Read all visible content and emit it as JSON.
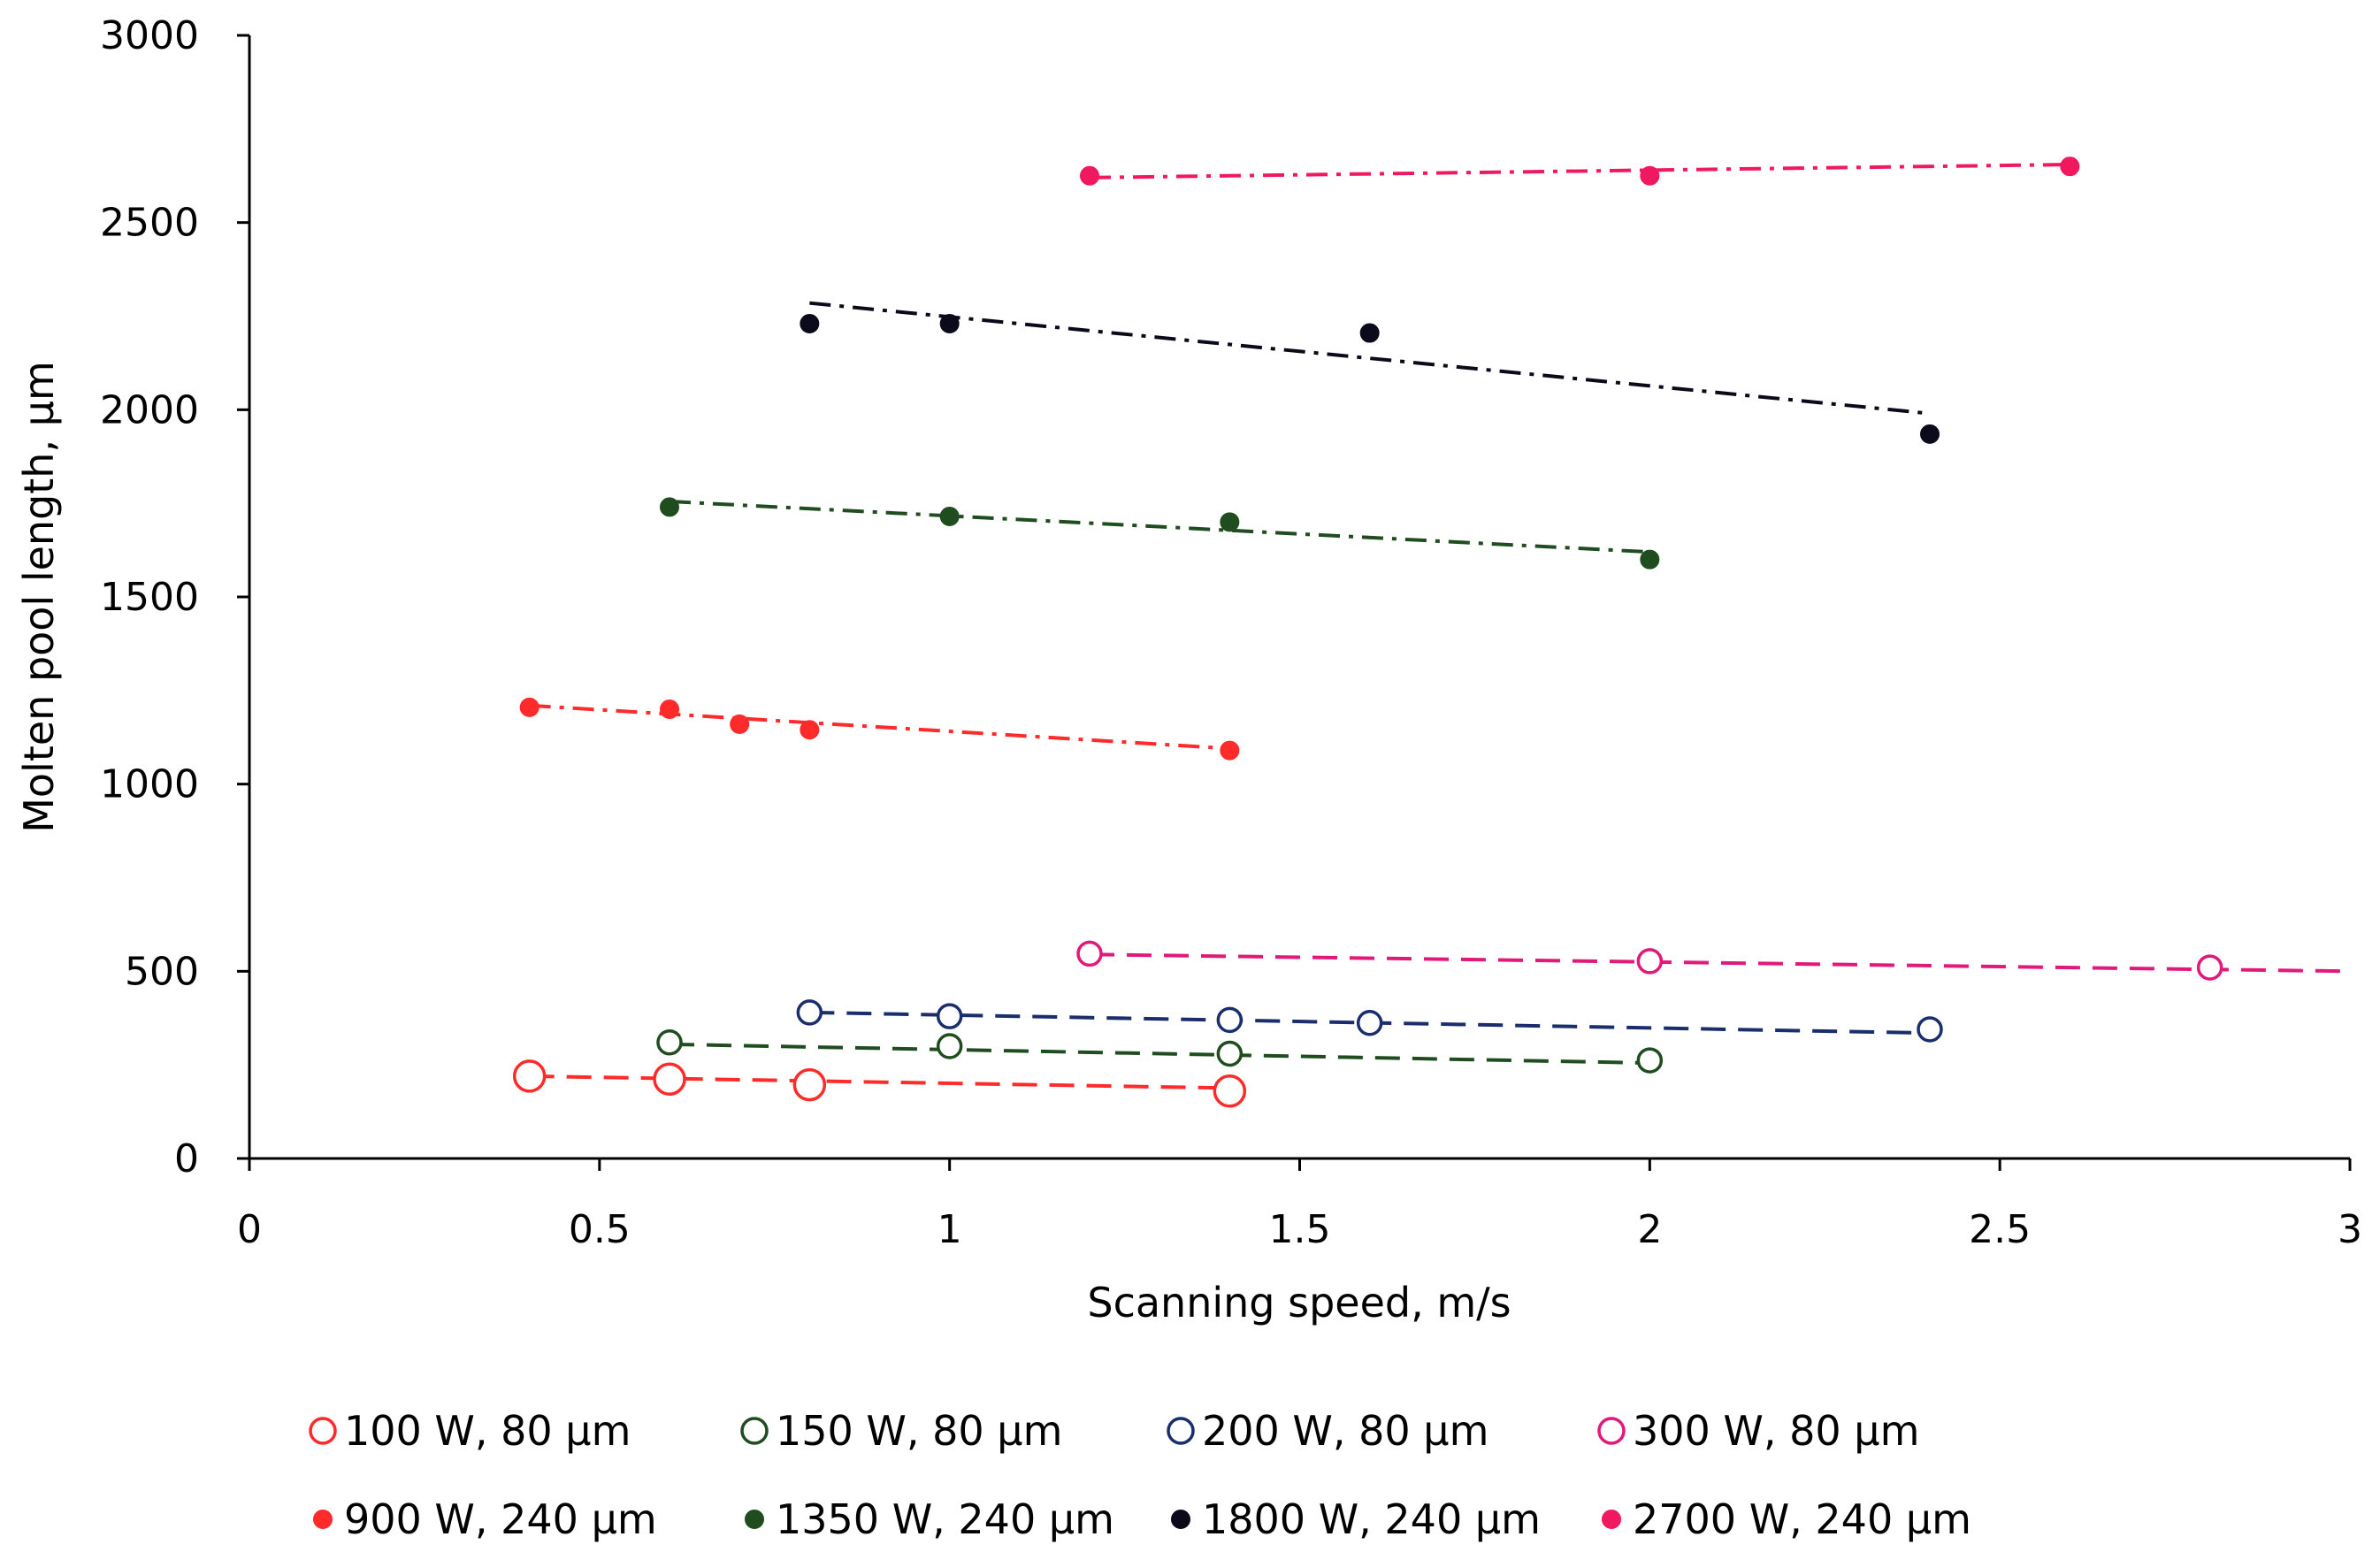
{
  "chart_data": {
    "type": "scatter",
    "title": "",
    "xlabel": "Scanning speed, m/s",
    "ylabel": "Molten pool length, µm",
    "xlim": [
      0,
      3
    ],
    "ylim": [
      0,
      3000
    ],
    "xticks": [
      0,
      0.5,
      1,
      1.5,
      2,
      2.5,
      3
    ],
    "xtick_labels": [
      "0",
      "0.5",
      "1",
      "1.5",
      "2",
      "2.5",
      "3"
    ],
    "yticks": [
      0,
      500,
      1000,
      1500,
      2000,
      2500,
      3000
    ],
    "ytick_labels": [
      "0",
      "500",
      "1000",
      "1500",
      "2000",
      "2500",
      "3000"
    ],
    "grid": false,
    "legend_position": "bottom",
    "series": [
      {
        "name": "100 W, 80 µm",
        "color": "#ff2a2a",
        "marker": "open-circle",
        "marker_size": "large",
        "trendline": "dashed",
        "x": [
          0.4,
          0.6,
          0.8,
          1.4
        ],
        "y": [
          220,
          212,
          197,
          180
        ],
        "trend": [
          [
            0.4,
            220
          ],
          [
            1.4,
            188
          ]
        ]
      },
      {
        "name": "150 W, 80 µm",
        "color": "#1f4d1f",
        "marker": "open-circle",
        "marker_size": "medium",
        "trendline": "dashed",
        "x": [
          0.6,
          1.0,
          1.4,
          2.0
        ],
        "y": [
          310,
          300,
          280,
          262
        ],
        "trend": [
          [
            0.6,
            305
          ],
          [
            2.0,
            255
          ]
        ]
      },
      {
        "name": "200 W, 80 µm",
        "color": "#1a2e6e",
        "marker": "open-circle",
        "marker_size": "medium",
        "trendline": "dashed",
        "x": [
          0.8,
          1.0,
          1.4,
          1.6,
          2.4
        ],
        "y": [
          390,
          380,
          370,
          362,
          345
        ],
        "trend": [
          [
            0.8,
            390
          ],
          [
            2.4,
            335
          ]
        ]
      },
      {
        "name": "300 W, 80 µm",
        "color": "#e0197a",
        "marker": "open-circle",
        "marker_size": "medium",
        "trendline": "dashed",
        "x": [
          1.2,
          2.0,
          2.8
        ],
        "y": [
          547,
          527,
          510
        ],
        "trend": [
          [
            1.2,
            545
          ],
          [
            3.0,
            500
          ]
        ]
      },
      {
        "name": "900 W, 240 µm",
        "color": "#ff2a2a",
        "marker": "filled-circle",
        "marker_size": "small",
        "trendline": "dash-dot",
        "x": [
          0.4,
          0.6,
          0.7,
          0.8,
          1.4
        ],
        "y": [
          1205,
          1200,
          1160,
          1145,
          1090
        ],
        "trend": [
          [
            0.4,
            1210
          ],
          [
            1.4,
            1095
          ]
        ]
      },
      {
        "name": "1350 W, 240 µm",
        "color": "#1f4d1f",
        "marker": "filled-circle",
        "marker_size": "small",
        "trendline": "dash-dot",
        "x": [
          0.6,
          1.0,
          1.4,
          2.0
        ],
        "y": [
          1740,
          1715,
          1700,
          1600
        ],
        "trend": [
          [
            0.6,
            1755
          ],
          [
            2.0,
            1620
          ]
        ]
      },
      {
        "name": "1800 W, 240 µm",
        "color": "#0a0a1a",
        "marker": "filled-circle",
        "marker_size": "small",
        "trendline": "dash-dot",
        "x": [
          0.8,
          1.0,
          1.6,
          2.4
        ],
        "y": [
          2230,
          2230,
          2205,
          1935
        ],
        "trend": [
          [
            0.8,
            2285
          ],
          [
            2.4,
            1990
          ]
        ]
      },
      {
        "name": "2700 W, 240 µm",
        "color": "#f0185e",
        "marker": "filled-circle",
        "marker_size": "small",
        "trendline": "dash-dot",
        "x": [
          1.2,
          2.0,
          2.6
        ],
        "y": [
          2625,
          2625,
          2650
        ],
        "trend": [
          [
            1.2,
            2620
          ],
          [
            2.6,
            2655
          ]
        ]
      }
    ]
  }
}
